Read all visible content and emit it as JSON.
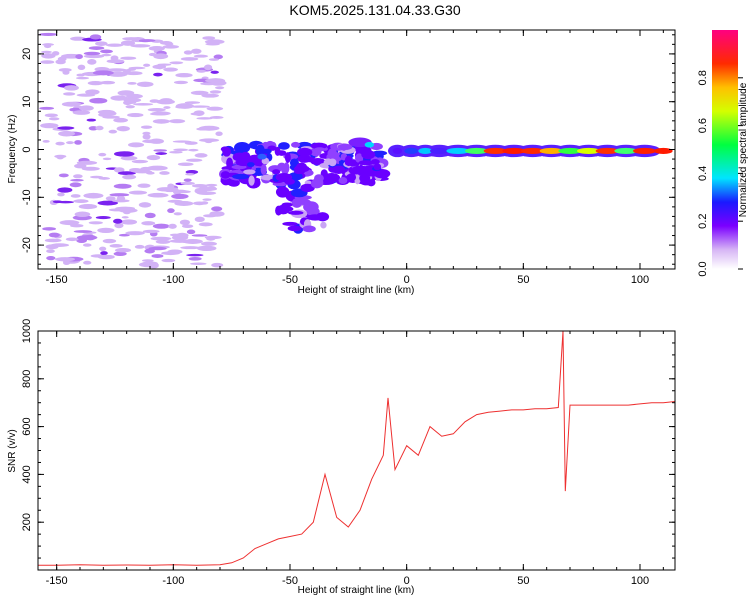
{
  "title": "KOM5.2025.131.04.33.G30",
  "chart_data": [
    {
      "type": "heatmap",
      "xlabel": "Height of straight line (km)",
      "ylabel": "Frequency (Hz)",
      "xlim": [
        -158,
        115
      ],
      "ylim": [
        -25,
        25
      ],
      "xticks": [
        -150,
        -100,
        -50,
        0,
        50,
        100
      ],
      "yticks": [
        -20,
        -10,
        0,
        10,
        20
      ],
      "colorbar": {
        "label": "Normalized spectral amplitude",
        "range": [
          0,
          1
        ],
        "ticks": [
          "0.0",
          "0.2",
          "0.4",
          "0.6",
          "0.8"
        ],
        "colormap": "rainbow (white, violet, blue, cyan, green, yellow, red, pink)"
      },
      "features": [
        {
          "region": "x -158 to -80",
          "description": "scattered low-amplitude speckle across all frequencies"
        },
        {
          "region": "x -78 to -10",
          "description": "cluster near 0 Hz spreading to about -17 Hz, amplitude 0.2-0.4"
        },
        {
          "region": "x -5 to 115",
          "description": "narrow band near 0 Hz, amplitude rising to 0.9-1.0"
        }
      ]
    },
    {
      "type": "line",
      "xlabel": "Height of straight line (km)",
      "ylabel": "SNR (v/v)",
      "xlim": [
        -158,
        115
      ],
      "ylim": [
        0,
        1000
      ],
      "xticks": [
        -150,
        -100,
        -50,
        0,
        50,
        100
      ],
      "yticks": [
        200,
        400,
        600,
        800,
        1000
      ],
      "color": "#ee3030",
      "x": [
        -158,
        -150,
        -140,
        -130,
        -120,
        -110,
        -100,
        -90,
        -80,
        -75,
        -70,
        -65,
        -60,
        -55,
        -50,
        -45,
        -40,
        -35,
        -30,
        -25,
        -20,
        -15,
        -10,
        -8,
        -5,
        0,
        5,
        10,
        15,
        20,
        25,
        30,
        35,
        40,
        45,
        50,
        55,
        60,
        65,
        67,
        68,
        70,
        75,
        80,
        85,
        90,
        95,
        100,
        105,
        110,
        115
      ],
      "y": [
        20,
        20,
        22,
        20,
        21,
        20,
        22,
        20,
        22,
        30,
        50,
        90,
        110,
        130,
        140,
        150,
        200,
        400,
        220,
        180,
        250,
        380,
        480,
        720,
        420,
        520,
        480,
        600,
        560,
        570,
        620,
        650,
        660,
        665,
        670,
        670,
        675,
        675,
        680,
        1000,
        330,
        690,
        690,
        690,
        690,
        690,
        690,
        695,
        700,
        700,
        705
      ]
    }
  ]
}
